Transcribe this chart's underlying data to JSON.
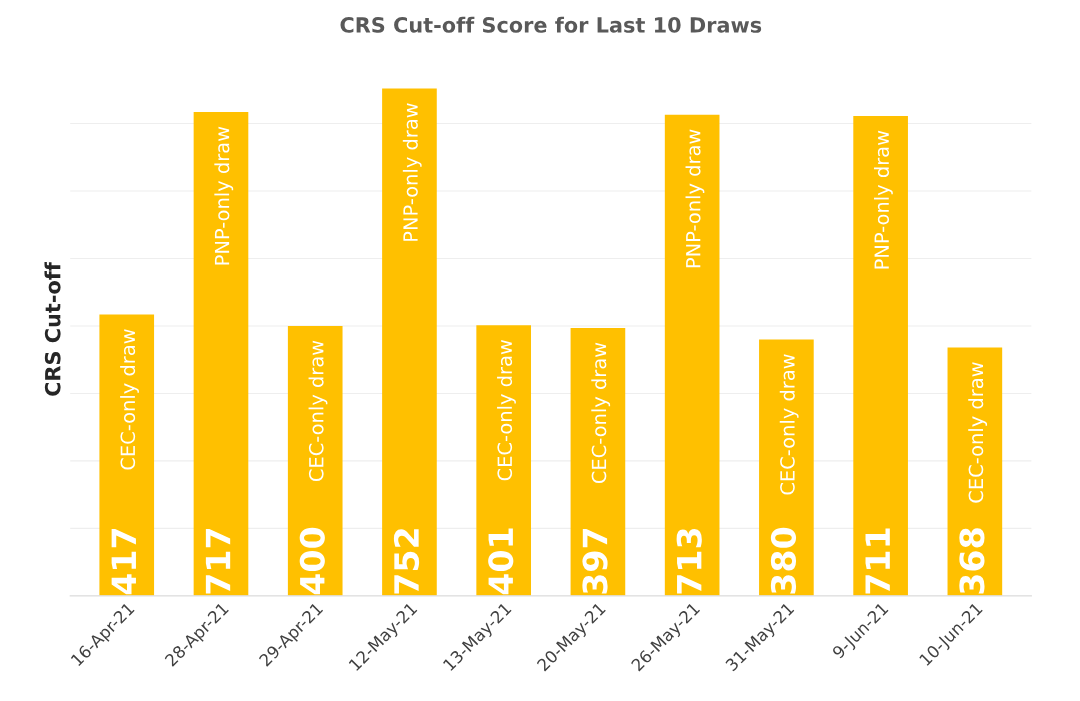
{
  "chart_data": {
    "type": "bar",
    "title": "CRS Cut-off Score for Last 10 Draws",
    "ylabel": "CRS Cut-off",
    "categories": [
      "16-Apr-21",
      "28-Apr-21",
      "29-Apr-21",
      "12-May-21",
      "13-May-21",
      "20-May-21",
      "26-May-21",
      "31-May-21",
      "9-Jun-21",
      "10-Jun-21"
    ],
    "values": [
      417,
      717,
      400,
      752,
      401,
      397,
      713,
      380,
      711,
      368
    ],
    "color": "#ffc000",
    "data_labels": true,
    "yticks": [
      {
        "value": 0,
        "label": null
      },
      {
        "value": 100,
        "label": null
      },
      {
        "value": 200,
        "label": null
      },
      {
        "value": 300,
        "label": null
      },
      {
        "value": 400,
        "label": null
      },
      {
        "value": 500,
        "label": null
      },
      {
        "value": 600,
        "label": null
      },
      {
        "value": 700,
        "label": null
      }
    ],
    "tick_labels": "x",
    "grid": "y",
    "legend": false,
    "annotations": [
      {
        "text": "CEC-only draw",
        "x": "16-Apr-21",
        "y": 417
      },
      {
        "text": "PNP-only draw",
        "x": "28-Apr-21",
        "y": 717
      },
      {
        "text": "CEC-only draw",
        "x": "29-Apr-21",
        "y": 400
      },
      {
        "text": "PNP-only draw",
        "x": "12-May-21",
        "y": 752
      },
      {
        "text": "CEC-only draw",
        "x": "13-May-21",
        "y": 401
      },
      {
        "text": "CEC-only draw",
        "x": "20-May-21",
        "y": 397
      },
      {
        "text": "PNP-only draw",
        "x": "26-May-21",
        "y": 713
      },
      {
        "text": "CEC-only draw",
        "x": "31-May-21",
        "y": 380
      },
      {
        "text": "PNP-only draw",
        "x": "9-Jun-21",
        "y": 711
      },
      {
        "text": "CEC-only draw",
        "x": "10-Jun-21",
        "y": 368
      }
    ]
  }
}
